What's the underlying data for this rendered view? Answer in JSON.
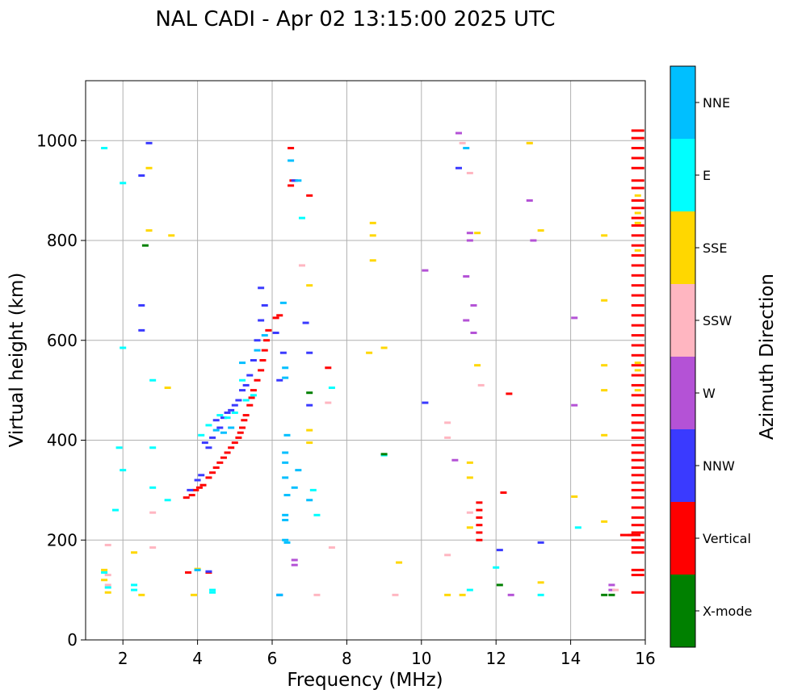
{
  "chart_data": {
    "type": "scatter",
    "title": "NAL CADI - Apr 02 13:15:00 2025 UTC",
    "xlabel": "Frequency (MHz)",
    "ylabel": "Virtual height (km)",
    "xlim": [
      1,
      16
    ],
    "ylim": [
      0,
      1120
    ],
    "xticks": [
      2,
      4,
      6,
      8,
      10,
      12,
      14,
      16
    ],
    "yticks": [
      0,
      200,
      400,
      600,
      800,
      1000
    ],
    "grid": true,
    "colorbar": {
      "label": "Azimuth Direction",
      "categories": [
        {
          "name": "X-mode",
          "color": "#008000"
        },
        {
          "name": "Vertical",
          "color": "#ff0000"
        },
        {
          "name": "NNW",
          "color": "#3a3aff"
        },
        {
          "name": "W",
          "color": "#b452d6"
        },
        {
          "name": "SSW",
          "color": "#ffb6c1"
        },
        {
          "name": "SSE",
          "color": "#ffd700"
        },
        {
          "name": "E",
          "color": "#00ffff"
        },
        {
          "name": "NNE",
          "color": "#00bfff"
        }
      ]
    },
    "series": [
      {
        "name": "Vertical",
        "color": "#ff0000",
        "points": [
          [
            3.7,
            285
          ],
          [
            3.85,
            290
          ],
          [
            3.95,
            300
          ],
          [
            4.05,
            305
          ],
          [
            4.15,
            310
          ],
          [
            4.3,
            325
          ],
          [
            4.4,
            335
          ],
          [
            4.5,
            345
          ],
          [
            4.6,
            355
          ],
          [
            4.7,
            365
          ],
          [
            4.8,
            375
          ],
          [
            4.9,
            385
          ],
          [
            5.0,
            395
          ],
          [
            5.1,
            405
          ],
          [
            5.15,
            415
          ],
          [
            5.2,
            425
          ],
          [
            5.25,
            440
          ],
          [
            5.3,
            450
          ],
          [
            5.4,
            470
          ],
          [
            5.45,
            485
          ],
          [
            5.5,
            500
          ],
          [
            5.6,
            520
          ],
          [
            5.7,
            540
          ],
          [
            5.75,
            560
          ],
          [
            5.8,
            580
          ],
          [
            5.85,
            600
          ],
          [
            5.9,
            620
          ],
          [
            6.1,
            645
          ],
          [
            6.2,
            650
          ],
          [
            3.75,
            135
          ],
          [
            4.3,
            135
          ],
          [
            6.55,
            920
          ],
          [
            6.5,
            910
          ],
          [
            6.5,
            985
          ],
          [
            7.0,
            890
          ],
          [
            7.5,
            545
          ],
          [
            11.55,
            200
          ],
          [
            11.55,
            215
          ],
          [
            11.55,
            230
          ],
          [
            11.55,
            245
          ],
          [
            11.55,
            260
          ],
          [
            11.55,
            275
          ],
          [
            12.2,
            295
          ],
          [
            12.35,
            493
          ],
          [
            15.5,
            210
          ],
          [
            15.7,
            210
          ],
          [
            15.8,
            1020
          ],
          [
            15.8,
            1005
          ],
          [
            15.8,
            985
          ],
          [
            15.8,
            965
          ],
          [
            15.8,
            945
          ],
          [
            15.8,
            920
          ],
          [
            15.8,
            905
          ],
          [
            15.8,
            880
          ],
          [
            15.8,
            865
          ],
          [
            15.8,
            845
          ],
          [
            15.8,
            830
          ],
          [
            15.8,
            810
          ],
          [
            15.8,
            790
          ],
          [
            15.8,
            770
          ],
          [
            15.8,
            750
          ],
          [
            15.8,
            730
          ],
          [
            15.8,
            710
          ],
          [
            15.8,
            690
          ],
          [
            15.8,
            670
          ],
          [
            15.8,
            650
          ],
          [
            15.8,
            630
          ],
          [
            15.8,
            610
          ],
          [
            15.8,
            590
          ],
          [
            15.8,
            570
          ],
          [
            15.8,
            550
          ],
          [
            15.8,
            530
          ],
          [
            15.8,
            510
          ],
          [
            15.8,
            490
          ],
          [
            15.8,
            470
          ],
          [
            15.8,
            450
          ],
          [
            15.8,
            435
          ],
          [
            15.8,
            420
          ],
          [
            15.8,
            405
          ],
          [
            15.8,
            390
          ],
          [
            15.8,
            375
          ],
          [
            15.8,
            360
          ],
          [
            15.8,
            345
          ],
          [
            15.8,
            330
          ],
          [
            15.8,
            315
          ],
          [
            15.8,
            300
          ],
          [
            15.8,
            285
          ],
          [
            15.8,
            265
          ],
          [
            15.8,
            245
          ],
          [
            15.8,
            230
          ],
          [
            15.8,
            215
          ],
          [
            15.8,
            200
          ],
          [
            15.8,
            185
          ],
          [
            15.8,
            175
          ],
          [
            15.8,
            140
          ],
          [
            15.8,
            130
          ],
          [
            15.8,
            95
          ]
        ]
      },
      {
        "name": "NNW",
        "color": "#3a3aff",
        "points": [
          [
            3.8,
            300
          ],
          [
            4.0,
            320
          ],
          [
            4.1,
            330
          ],
          [
            4.2,
            395
          ],
          [
            4.3,
            385
          ],
          [
            4.4,
            405
          ],
          [
            4.5,
            440
          ],
          [
            4.6,
            425
          ],
          [
            4.7,
            445
          ],
          [
            4.8,
            455
          ],
          [
            4.9,
            460
          ],
          [
            5.0,
            470
          ],
          [
            5.1,
            480
          ],
          [
            5.2,
            500
          ],
          [
            5.3,
            510
          ],
          [
            5.4,
            530
          ],
          [
            5.5,
            560
          ],
          [
            5.6,
            600
          ],
          [
            5.7,
            640
          ],
          [
            5.8,
            670
          ],
          [
            5.7,
            705
          ],
          [
            6.1,
            615
          ],
          [
            6.2,
            520
          ],
          [
            6.3,
            575
          ],
          [
            2.7,
            995
          ],
          [
            2.5,
            930
          ],
          [
            2.5,
            670
          ],
          [
            2.5,
            620
          ],
          [
            6.6,
            920
          ],
          [
            6.9,
            635
          ],
          [
            7.0,
            575
          ],
          [
            7.0,
            470
          ],
          [
            10.1,
            475
          ],
          [
            11.0,
            945
          ],
          [
            12.1,
            180
          ],
          [
            13.2,
            195
          ],
          [
            4.3,
            137
          ],
          [
            6.2,
            90
          ]
        ]
      },
      {
        "name": "W",
        "color": "#b452d6",
        "points": [
          [
            6.6,
            160
          ],
          [
            6.6,
            150
          ],
          [
            11.0,
            1015
          ],
          [
            11.3,
            815
          ],
          [
            11.3,
            800
          ],
          [
            11.2,
            728
          ],
          [
            11.4,
            670
          ],
          [
            11.4,
            615
          ],
          [
            11.2,
            640
          ],
          [
            10.9,
            360
          ],
          [
            10.1,
            740
          ],
          [
            12.9,
            880
          ],
          [
            13.0,
            800
          ],
          [
            14.1,
            645
          ],
          [
            14.1,
            470
          ],
          [
            12.4,
            90
          ],
          [
            15.1,
            110
          ],
          [
            15.1,
            100
          ]
        ]
      },
      {
        "name": "SSW",
        "color": "#ffb6c1",
        "points": [
          [
            2.8,
            255
          ],
          [
            2.8,
            185
          ],
          [
            6.8,
            750
          ],
          [
            7.5,
            475
          ],
          [
            7.6,
            185
          ],
          [
            9.3,
            90
          ],
          [
            10.7,
            435
          ],
          [
            10.7,
            405
          ],
          [
            10.7,
            170
          ],
          [
            11.1,
            995
          ],
          [
            11.3,
            935
          ],
          [
            11.3,
            255
          ],
          [
            11.6,
            510
          ],
          [
            1.6,
            190
          ],
          [
            1.6,
            130
          ],
          [
            1.6,
            110
          ],
          [
            7.2,
            90
          ],
          [
            12.9,
            995
          ],
          [
            15.2,
            100
          ]
        ]
      },
      {
        "name": "SSE",
        "color": "#ffd700",
        "points": [
          [
            2.7,
            945
          ],
          [
            2.7,
            820
          ],
          [
            3.3,
            810
          ],
          [
            3.2,
            505
          ],
          [
            8.7,
            835
          ],
          [
            8.7,
            810
          ],
          [
            8.7,
            760
          ],
          [
            8.6,
            575
          ],
          [
            9.0,
            585
          ],
          [
            9.4,
            155
          ],
          [
            7.0,
            710
          ],
          [
            7.0,
            420
          ],
          [
            7.0,
            395
          ],
          [
            11.3,
            355
          ],
          [
            11.3,
            325
          ],
          [
            11.5,
            815
          ],
          [
            11.5,
            550
          ],
          [
            11.3,
            225
          ],
          [
            12.9,
            995
          ],
          [
            13.2,
            820
          ],
          [
            13.2,
            115
          ],
          [
            14.9,
            810
          ],
          [
            14.9,
            680
          ],
          [
            14.9,
            550
          ],
          [
            14.9,
            500
          ],
          [
            14.9,
            410
          ],
          [
            14.9,
            237
          ],
          [
            10.7,
            90
          ],
          [
            11.1,
            90
          ],
          [
            2.5,
            90
          ],
          [
            3.9,
            90
          ],
          [
            4.0,
            142
          ],
          [
            2.3,
            175
          ],
          [
            1.5,
            140
          ],
          [
            1.5,
            120
          ],
          [
            1.6,
            95
          ],
          [
            14.1,
            287
          ],
          [
            15.8,
            890
          ],
          [
            15.8,
            855
          ],
          [
            15.8,
            835
          ],
          [
            15.8,
            780
          ],
          [
            15.8,
            555
          ],
          [
            15.8,
            540
          ],
          [
            15.8,
            500
          ]
        ]
      },
      {
        "name": "E",
        "color": "#00ffff",
        "points": [
          [
            1.5,
            985
          ],
          [
            2.0,
            915
          ],
          [
            2.0,
            585
          ],
          [
            1.9,
            385
          ],
          [
            2.0,
            340
          ],
          [
            1.8,
            260
          ],
          [
            2.8,
            520
          ],
          [
            2.8,
            385
          ],
          [
            2.8,
            305
          ],
          [
            3.2,
            280
          ],
          [
            4.1,
            410
          ],
          [
            4.3,
            430
          ],
          [
            4.6,
            450
          ],
          [
            4.8,
            445
          ],
          [
            5.0,
            455
          ],
          [
            5.3,
            480
          ],
          [
            5.5,
            490
          ],
          [
            5.2,
            520
          ],
          [
            6.8,
            845
          ],
          [
            7.1,
            300
          ],
          [
            7.2,
            250
          ],
          [
            7.6,
            505
          ],
          [
            9.0,
            370
          ],
          [
            11.3,
            100
          ],
          [
            12.0,
            145
          ],
          [
            13.2,
            90
          ],
          [
            14.2,
            225
          ],
          [
            4.4,
            100
          ],
          [
            4.4,
            95
          ],
          [
            2.3,
            110
          ],
          [
            2.3,
            100
          ],
          [
            1.5,
            135
          ],
          [
            1.6,
            105
          ]
        ]
      },
      {
        "name": "NNE",
        "color": "#00bfff",
        "points": [
          [
            6.3,
            675
          ],
          [
            6.35,
            545
          ],
          [
            6.35,
            525
          ],
          [
            6.4,
            410
          ],
          [
            6.35,
            375
          ],
          [
            6.35,
            355
          ],
          [
            6.35,
            325
          ],
          [
            6.4,
            290
          ],
          [
            6.35,
            250
          ],
          [
            6.35,
            240
          ],
          [
            6.35,
            200
          ],
          [
            6.4,
            195
          ],
          [
            6.5,
            960
          ],
          [
            6.7,
            920
          ],
          [
            6.7,
            340
          ],
          [
            6.6,
            305
          ],
          [
            7.0,
            280
          ],
          [
            5.8,
            610
          ],
          [
            5.6,
            580
          ],
          [
            5.2,
            555
          ],
          [
            4.9,
            425
          ],
          [
            4.7,
            415
          ],
          [
            4.5,
            420
          ],
          [
            11.2,
            985
          ],
          [
            6.2,
            90
          ],
          [
            4.0,
            140
          ]
        ]
      },
      {
        "name": "X-mode",
        "color": "#008000",
        "points": [
          [
            2.6,
            790
          ],
          [
            7.0,
            495
          ],
          [
            9.0,
            372
          ],
          [
            12.1,
            110
          ],
          [
            14.9,
            90
          ],
          [
            15.1,
            90
          ]
        ]
      }
    ]
  }
}
